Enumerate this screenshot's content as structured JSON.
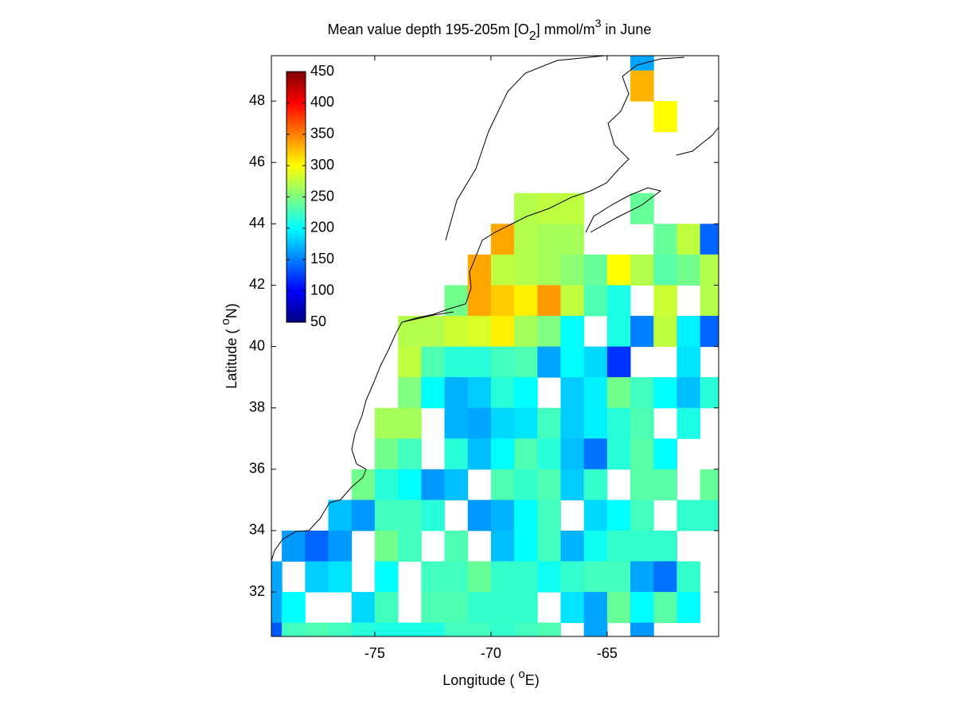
{
  "chart_data": {
    "type": "heatmap",
    "title": [
      "Mean value depth 195-205m [O",
      "2",
      "] mmol/m",
      "3",
      " in June"
    ],
    "xlabel": [
      "Longitude ( ",
      "o",
      "E)"
    ],
    "ylabel": [
      "Latitude ( ",
      "o",
      "N)"
    ],
    "colormap": "jet",
    "x": [
      -79.5,
      -78.5,
      -77.5,
      -76.5,
      -75.5,
      -74.5,
      -73.5,
      -72.5,
      -71.5,
      -70.5,
      -69.5,
      -68.5,
      -67.5,
      -66.5,
      -65.5,
      -64.5,
      -63.5,
      -62.5,
      -61.5,
      -60.5
    ],
    "y": [
      49.5,
      48.5,
      47.5,
      46.5,
      45.5,
      44.5,
      43.5,
      42.5,
      41.5,
      40.5,
      39.5,
      38.5,
      37.5,
      36.5,
      35.5,
      34.5,
      33.5,
      32.5,
      31.5,
      30.5
    ],
    "z": [
      [
        null,
        null,
        null,
        null,
        null,
        null,
        null,
        null,
        null,
        null,
        null,
        null,
        null,
        null,
        null,
        null,
        165,
        null,
        null,
        null
      ],
      [
        null,
        null,
        null,
        null,
        null,
        null,
        null,
        null,
        null,
        null,
        null,
        null,
        null,
        null,
        null,
        null,
        330,
        null,
        null,
        null
      ],
      [
        null,
        null,
        null,
        null,
        null,
        null,
        null,
        null,
        null,
        null,
        null,
        null,
        null,
        null,
        null,
        null,
        null,
        300,
        null,
        null
      ],
      [
        null,
        null,
        null,
        null,
        null,
        null,
        null,
        null,
        null,
        null,
        null,
        null,
        null,
        null,
        null,
        null,
        null,
        null,
        null,
        null
      ],
      [
        null,
        null,
        null,
        null,
        null,
        null,
        null,
        null,
        null,
        null,
        null,
        null,
        null,
        null,
        null,
        null,
        null,
        null,
        null,
        null
      ],
      [
        null,
        null,
        null,
        null,
        null,
        null,
        null,
        null,
        null,
        null,
        null,
        270,
        275,
        275,
        null,
        null,
        240,
        null,
        null,
        null
      ],
      [
        null,
        null,
        null,
        null,
        null,
        null,
        null,
        null,
        null,
        null,
        335,
        270,
        265,
        265,
        null,
        null,
        null,
        240,
        275,
        140
      ],
      [
        null,
        null,
        null,
        null,
        null,
        null,
        null,
        null,
        null,
        335,
        275,
        270,
        265,
        255,
        240,
        300,
        270,
        235,
        245,
        270
      ],
      [
        null,
        null,
        null,
        null,
        null,
        null,
        null,
        null,
        245,
        335,
        320,
        305,
        340,
        275,
        230,
        210,
        null,
        280,
        null,
        270
      ],
      [
        null,
        null,
        null,
        null,
        null,
        null,
        270,
        270,
        280,
        285,
        305,
        265,
        250,
        200,
        null,
        210,
        150,
        275,
        195,
        140
      ],
      [
        null,
        null,
        null,
        null,
        null,
        null,
        275,
        230,
        215,
        215,
        225,
        230,
        165,
        200,
        185,
        120,
        null,
        null,
        190,
        null
      ],
      [
        null,
        null,
        null,
        null,
        null,
        null,
        250,
        200,
        170,
        180,
        215,
        200,
        null,
        180,
        195,
        245,
        225,
        200,
        175,
        215
      ],
      [
        null,
        null,
        null,
        null,
        null,
        265,
        265,
        null,
        170,
        165,
        185,
        190,
        225,
        180,
        195,
        215,
        230,
        null,
        210,
        null
      ],
      [
        null,
        null,
        null,
        null,
        null,
        245,
        225,
        null,
        215,
        175,
        200,
        230,
        215,
        175,
        145,
        215,
        235,
        200,
        null,
        null
      ],
      [
        null,
        null,
        null,
        null,
        245,
        215,
        200,
        160,
        175,
        null,
        230,
        220,
        230,
        180,
        220,
        null,
        235,
        235,
        null,
        240
      ],
      [
        null,
        null,
        null,
        175,
        160,
        225,
        225,
        215,
        null,
        160,
        170,
        200,
        225,
        null,
        185,
        200,
        225,
        null,
        220,
        220
      ],
      [
        null,
        160,
        140,
        160,
        null,
        245,
        225,
        null,
        230,
        null,
        175,
        200,
        225,
        170,
        205,
        220,
        220,
        220,
        null,
        null
      ],
      [
        165,
        null,
        180,
        190,
        null,
        200,
        null,
        225,
        225,
        240,
        220,
        220,
        205,
        220,
        225,
        225,
        165,
        145,
        220,
        null
      ],
      [
        165,
        200,
        null,
        null,
        185,
        225,
        null,
        230,
        230,
        220,
        220,
        220,
        null,
        190,
        165,
        240,
        200,
        235,
        200,
        null
      ],
      [
        135,
        225,
        230,
        225,
        215,
        210,
        210,
        210,
        225,
        225,
        220,
        225,
        230,
        null,
        165,
        null,
        160,
        null,
        null,
        null
      ]
    ],
    "xlim": [
      -79.45,
      -60.2
    ],
    "ylim": [
      30.55,
      49.48
    ],
    "xticks": [
      -75,
      -70,
      -65
    ],
    "yticks": [
      32,
      34,
      36,
      38,
      40,
      42,
      44,
      46,
      48
    ],
    "clim": [
      50,
      450
    ],
    "cticks": [
      50,
      100,
      150,
      200,
      250,
      300,
      350,
      400,
      450
    ]
  }
}
